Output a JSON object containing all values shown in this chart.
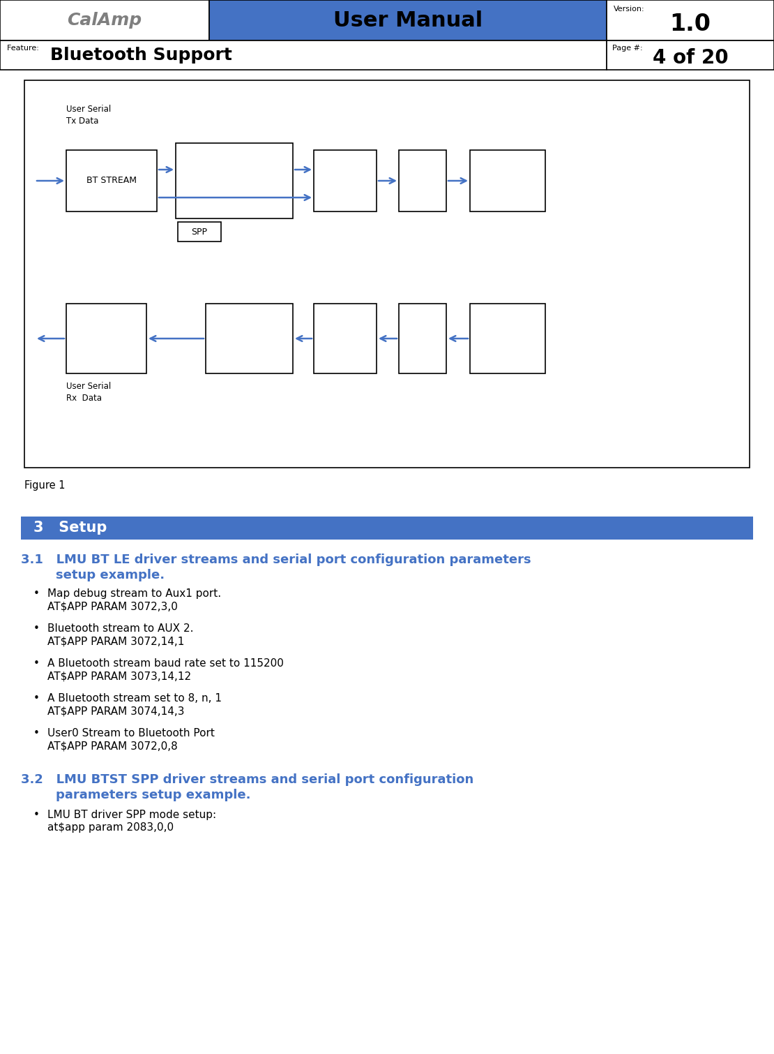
{
  "header_title": "User Manual",
  "header_version_label": "Version:",
  "header_version": "1.0",
  "header_feature_label": "Feature:  ",
  "header_feature": "Bluetooth Support",
  "header_page_label": "Page #:",
  "header_page": "4 of 20",
  "header_blue": "#4472C4",
  "figure_caption": "Figure 1",
  "section3_title": "3   Setup",
  "section3_bg": "#4472C4",
  "section3_text_color": "#FFFFFF",
  "section31_line1": "3.1   LMU BT LE driver streams and serial port configuration parameters",
  "section31_line2": "        setup example.",
  "section31_color": "#4472C4",
  "bullets_31": [
    [
      "Map debug stream to Aux1 port.",
      "AT$APP PARAM 3072,3,0"
    ],
    [
      "Bluetooth stream to AUX 2.",
      "AT$APP PARAM 3072,14,1"
    ],
    [
      "A Bluetooth stream baud rate set to 115200",
      "AT$APP PARAM 3073,14,12"
    ],
    [
      "A Bluetooth stream set to 8, n, 1",
      "AT$APP PARAM 3074,14,3"
    ],
    [
      "User0 Stream to Bluetooth Port",
      "AT$APP PARAM 3072,0,8"
    ]
  ],
  "section32_line1": "3.2   LMU BTST SPP driver streams and serial port configuration",
  "section32_line2": "        parameters setup example.",
  "section32_color": "#4472C4",
  "bullets_32": [
    [
      "LMU BT driver SPP mode setup:",
      "at$app param 2083,0,0"
    ]
  ],
  "diagram_box_color": "#000000",
  "diagram_arrow_color": "#4472C4",
  "diagram_text_bt_stream": "BT STREAM",
  "diagram_text_spp": "SPP",
  "diagram_text_user_serial_tx": "User Serial\nTx Data",
  "diagram_text_user_serial_rx": "User Serial\nRx  Data"
}
